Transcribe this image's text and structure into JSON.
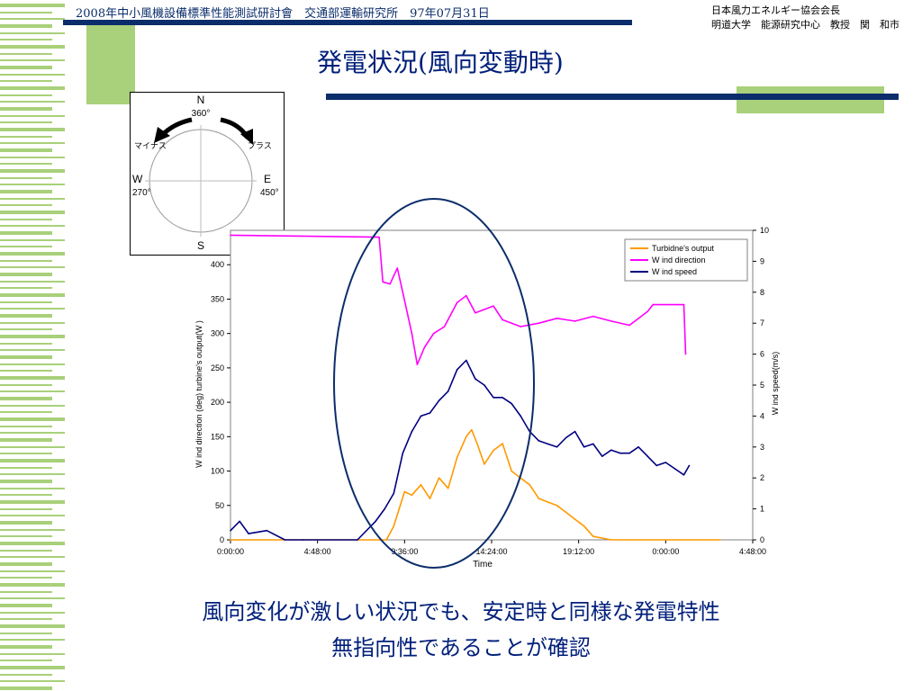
{
  "header": {
    "event_line": "2008年中小風機設備標準性能測試研討會　交通部運輸研究所　97年07月31日",
    "org_line1": "日本風力エネルギー協会会長",
    "org_line2": "明道大学　能源研究中心　教授　関　和市"
  },
  "slide": {
    "title": "発電状況(風向変動時)",
    "caption_line1": "風向変化が激しい状況でも、安定時と同様な発電特性",
    "caption_line2": "無指向性であることが確認"
  },
  "compass": {
    "north": "N",
    "north_deg": "360°",
    "south": "S",
    "west": "W",
    "west_deg": "270°",
    "east": "E",
    "east_deg": "450°",
    "minus_label": "マイナス",
    "plus_label": "プラス"
  },
  "colors": {
    "navy": "#0b2d6b",
    "green": "#a9d07a",
    "turbine": "#ff9900",
    "direction": "#ff00ff",
    "speed": "#000080"
  },
  "chart_data": {
    "type": "line",
    "xlabel": "Time",
    "ylabel_left": "W ind direction (deg)  turbine's output(W )",
    "ylabel_right": "W ind speed(m/s)",
    "x_ticks": [
      "0:00:00",
      "4:48:00",
      "9:36:00",
      "14:24:00",
      "19:12:00",
      "0:00:00",
      "4:48:00"
    ],
    "y_left_ticks": [
      "0",
      "50",
      "100",
      "150",
      "200",
      "250",
      "300",
      "350",
      "400"
    ],
    "y_right_ticks": [
      "0",
      "1",
      "2",
      "3",
      "4",
      "5",
      "6",
      "7",
      "8",
      "9",
      "10"
    ],
    "y_left_range": [
      0,
      450
    ],
    "y_right_range": [
      0,
      10
    ],
    "x_range_hours": [
      0,
      28.8
    ],
    "legend_position": "top-right",
    "series": [
      {
        "name": "Turbidne's output",
        "axis": "left",
        "points": [
          [
            0,
            0
          ],
          [
            7,
            0
          ],
          [
            8.6,
            0
          ],
          [
            9,
            20
          ],
          [
            9.3,
            45
          ],
          [
            9.6,
            70
          ],
          [
            10,
            65
          ],
          [
            10.5,
            80
          ],
          [
            11,
            60
          ],
          [
            11.5,
            90
          ],
          [
            12,
            75
          ],
          [
            12.5,
            120
          ],
          [
            13,
            150
          ],
          [
            13.3,
            160
          ],
          [
            13.6,
            140
          ],
          [
            14,
            110
          ],
          [
            14.5,
            130
          ],
          [
            15,
            140
          ],
          [
            15.5,
            100
          ],
          [
            16,
            90
          ],
          [
            16.5,
            80
          ],
          [
            17,
            60
          ],
          [
            17.5,
            55
          ],
          [
            18,
            50
          ],
          [
            18.5,
            40
          ],
          [
            19,
            30
          ],
          [
            19.5,
            20
          ],
          [
            20,
            5
          ],
          [
            21,
            0
          ],
          [
            27,
            0
          ]
        ]
      },
      {
        "name": "W ind direction",
        "axis": "left",
        "points": [
          [
            0,
            443
          ],
          [
            8.2,
            440
          ],
          [
            8.4,
            375
          ],
          [
            8.8,
            372
          ],
          [
            9.2,
            395
          ],
          [
            9.5,
            360
          ],
          [
            10,
            300
          ],
          [
            10.3,
            255
          ],
          [
            10.7,
            280
          ],
          [
            11.2,
            300
          ],
          [
            11.8,
            310
          ],
          [
            12.5,
            345
          ],
          [
            13,
            355
          ],
          [
            13.5,
            330
          ],
          [
            14.5,
            340
          ],
          [
            15,
            320
          ],
          [
            16,
            310
          ],
          [
            17,
            315
          ],
          [
            18,
            322
          ],
          [
            19,
            318
          ],
          [
            20,
            325
          ],
          [
            21,
            318
          ],
          [
            22,
            312
          ],
          [
            23,
            332
          ],
          [
            23.3,
            342
          ],
          [
            25,
            342
          ],
          [
            25.1,
            270
          ]
        ]
      },
      {
        "name": "W ind speed",
        "axis": "right",
        "points": [
          [
            0,
            0.3
          ],
          [
            0.5,
            0.6
          ],
          [
            1,
            0.2
          ],
          [
            2,
            0.3
          ],
          [
            3,
            0
          ],
          [
            4,
            0
          ],
          [
            7,
            0
          ],
          [
            8,
            0.6
          ],
          [
            8.5,
            1
          ],
          [
            9,
            1.5
          ],
          [
            9.5,
            2.8
          ],
          [
            10,
            3.5
          ],
          [
            10.5,
            4
          ],
          [
            11,
            4.1
          ],
          [
            11.5,
            4.5
          ],
          [
            12,
            4.8
          ],
          [
            12.5,
            5.5
          ],
          [
            13,
            5.8
          ],
          [
            13.5,
            5.2
          ],
          [
            14,
            5
          ],
          [
            14.5,
            4.6
          ],
          [
            15,
            4.6
          ],
          [
            15.5,
            4.4
          ],
          [
            16,
            4
          ],
          [
            16.5,
            3.5
          ],
          [
            17,
            3.2
          ],
          [
            17.5,
            3.1
          ],
          [
            18,
            3
          ],
          [
            18.5,
            3.3
          ],
          [
            19,
            3.5
          ],
          [
            19.5,
            3
          ],
          [
            20,
            3.1
          ],
          [
            20.5,
            2.7
          ],
          [
            21,
            2.9
          ],
          [
            21.5,
            2.8
          ],
          [
            22,
            2.8
          ],
          [
            22.5,
            3
          ],
          [
            23,
            2.7
          ],
          [
            23.5,
            2.4
          ],
          [
            24,
            2.5
          ],
          [
            24.5,
            2.3
          ],
          [
            25,
            2.1
          ],
          [
            25.3,
            2.4
          ]
        ]
      }
    ]
  }
}
